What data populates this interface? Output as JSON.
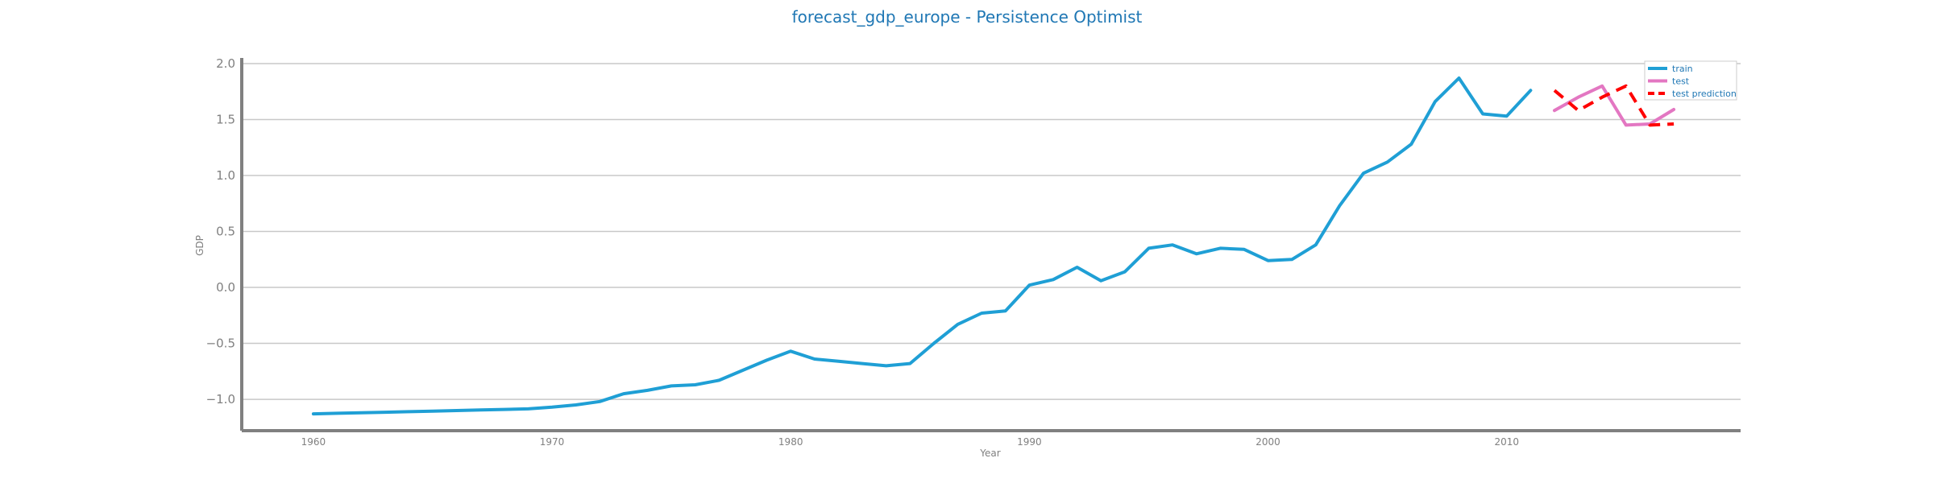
{
  "chart_data": {
    "type": "line",
    "title": "forecast_gdp_europe - Persistence Optimist",
    "xlabel": "Year",
    "ylabel": "GDP",
    "xlim": [
      1957,
      2019.8
    ],
    "ylim": [
      -1.28,
      2.05
    ],
    "x_ticks": [
      1960,
      1970,
      1980,
      1990,
      2000,
      2010
    ],
    "y_ticks": [
      -1.0,
      -0.5,
      0.0,
      0.5,
      1.0,
      1.5,
      2.0
    ],
    "y_tick_labels": [
      "−1.0",
      "−0.5",
      "0.0",
      "0.5",
      "1.0",
      "1.5",
      "2.0"
    ],
    "grid": "horizontal",
    "legend_position": "top-right",
    "series": [
      {
        "name": "train",
        "color": "#1f9fd5",
        "style": "solid",
        "x": [
          1960,
          1961,
          1962,
          1963,
          1964,
          1965,
          1966,
          1967,
          1968,
          1969,
          1970,
          1971,
          1972,
          1973,
          1974,
          1975,
          1976,
          1977,
          1978,
          1979,
          1980,
          1981,
          1982,
          1983,
          1984,
          1985,
          1986,
          1987,
          1988,
          1989,
          1990,
          1991,
          1992,
          1993,
          1994,
          1995,
          1996,
          1997,
          1998,
          1999,
          2000,
          2001,
          2002,
          2003,
          2004,
          2005,
          2006,
          2007,
          2008,
          2009,
          2010,
          2011
        ],
        "values": [
          -1.13,
          -1.125,
          -1.12,
          -1.115,
          -1.11,
          -1.105,
          -1.1,
          -1.095,
          -1.09,
          -1.085,
          -1.07,
          -1.05,
          -1.02,
          -0.95,
          -0.92,
          -0.88,
          -0.87,
          -0.83,
          -0.74,
          -0.65,
          -0.57,
          -0.64,
          -0.66,
          -0.68,
          -0.7,
          -0.68,
          -0.5,
          -0.33,
          -0.23,
          -0.21,
          0.02,
          0.07,
          0.18,
          0.06,
          0.14,
          0.35,
          0.38,
          0.3,
          0.35,
          0.34,
          0.24,
          0.25,
          0.38,
          0.73,
          1.02,
          1.12,
          1.28,
          1.66,
          1.87,
          1.55,
          1.53,
          1.76
        ]
      },
      {
        "name": "test",
        "color": "#e377c2",
        "style": "solid",
        "x": [
          2012,
          2013,
          2014,
          2015,
          2016,
          2017
        ],
        "values": [
          1.58,
          1.7,
          1.8,
          1.45,
          1.46,
          1.59
        ]
      },
      {
        "name": "test prediction",
        "color": "#ff0000",
        "style": "dashed",
        "x": [
          2012,
          2013,
          2014,
          2015,
          2016,
          2017
        ],
        "values": [
          1.76,
          1.58,
          1.7,
          1.8,
          1.45,
          1.46
        ]
      }
    ]
  }
}
